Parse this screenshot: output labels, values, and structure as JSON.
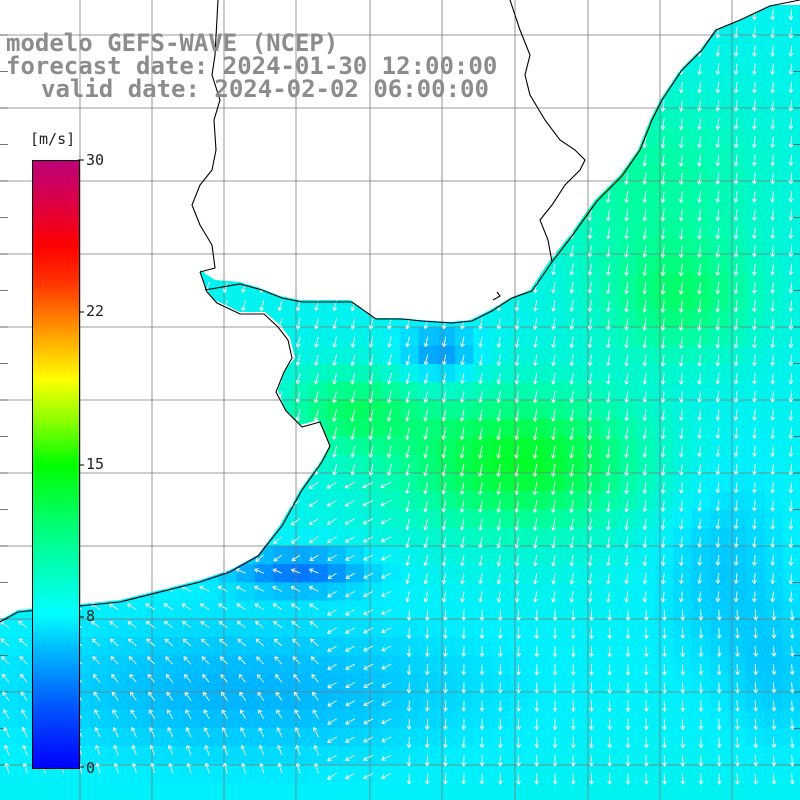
{
  "header": {
    "model_line": "modelo GEFS-WAVE (NCEP)",
    "forecast_line": "forecast date: 2024-01-30 12:00:00",
    "valid_line": "valid date: 2024-02-02 06:00:00"
  },
  "colorbar": {
    "unit": "[m/s]",
    "ticks": [
      "0",
      "8",
      "15",
      "22",
      "30"
    ],
    "colors": [
      "#0000ff",
      "#00ffff",
      "#00ff00",
      "#ffff00",
      "#ff0000",
      "#bb0077"
    ]
  },
  "map": {
    "variable": "wind speed with direction arrows",
    "wind_direction": "mostly from north (arrows pointing south / south-west)",
    "coastline_color": "#000000",
    "land_color": "#ffffff",
    "grid_color": "#808080",
    "arrow_color": "#ffffff"
  }
}
